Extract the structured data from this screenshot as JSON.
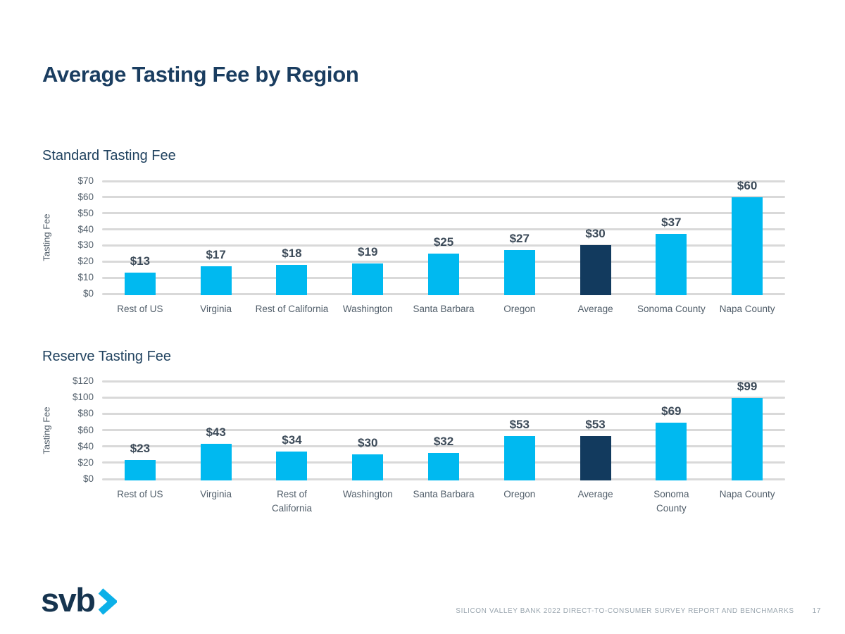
{
  "page": {
    "title": "Average Tasting Fee by Region"
  },
  "colors": {
    "title_navy": "#1a3d60",
    "bar": "#00b9f0",
    "bar_highlight": "#123a5e",
    "grid": "#d9d9d9",
    "value_label": "#3d4b59",
    "axis_label": "#515e6a",
    "footer_text": "#9aa6af",
    "logo_navy": "#16344f",
    "logo_chevron": "#0cb0e8"
  },
  "chart_data": [
    {
      "type": "bar",
      "title": "Standard Tasting Fee",
      "xlabel": "",
      "ylabel": "Tasting Fee",
      "ylim": [
        0,
        70
      ],
      "yticks": [
        70,
        60,
        50,
        40,
        30,
        20,
        10,
        0
      ],
      "ytick_labels": [
        "$70",
        "$60",
        "$50",
        "$40",
        "$30",
        "$20",
        "$10",
        "$0"
      ],
      "categories": [
        "Rest of US",
        "Virginia",
        "Rest of California",
        "Washington",
        "Santa Barbara",
        "Oregon",
        "Average",
        "Sonoma County",
        "Napa County"
      ],
      "values": [
        13,
        17,
        18,
        19,
        25,
        27,
        30,
        37,
        60
      ],
      "value_labels": [
        "$13",
        "$17",
        "$18",
        "$19",
        "$25",
        "$27",
        "$30",
        "$37",
        "$60"
      ],
      "highlight_index": 6,
      "grid": true,
      "legend": false
    },
    {
      "type": "bar",
      "title": "Reserve Tasting Fee",
      "xlabel": "",
      "ylabel": "Tasting Fee",
      "ylim": [
        0,
        120
      ],
      "yticks": [
        120,
        100,
        80,
        60,
        40,
        20,
        0
      ],
      "ytick_labels": [
        "$120",
        "$100",
        "$80",
        "$60",
        "$40",
        "$20",
        "$0"
      ],
      "categories": [
        "Rest of US",
        "Virginia",
        "Rest of\nCalifornia",
        "Washington",
        "Santa Barbara",
        "Oregon",
        "Average",
        "Sonoma\nCounty",
        "Napa County"
      ],
      "values": [
        23,
        43,
        34,
        30,
        32,
        53,
        53,
        69,
        99
      ],
      "value_labels": [
        "$23",
        "$43",
        "$34",
        "$30",
        "$32",
        "$53",
        "$53",
        "$69",
        "$99"
      ],
      "highlight_index": 6,
      "grid": true,
      "legend": false
    }
  ],
  "footer": {
    "logo_text": "svb",
    "report_text": "SILICON VALLEY BANK 2022 DIRECT-TO-CONSUMER SURVEY REPORT AND BENCHMARKS",
    "page_number": "17"
  }
}
